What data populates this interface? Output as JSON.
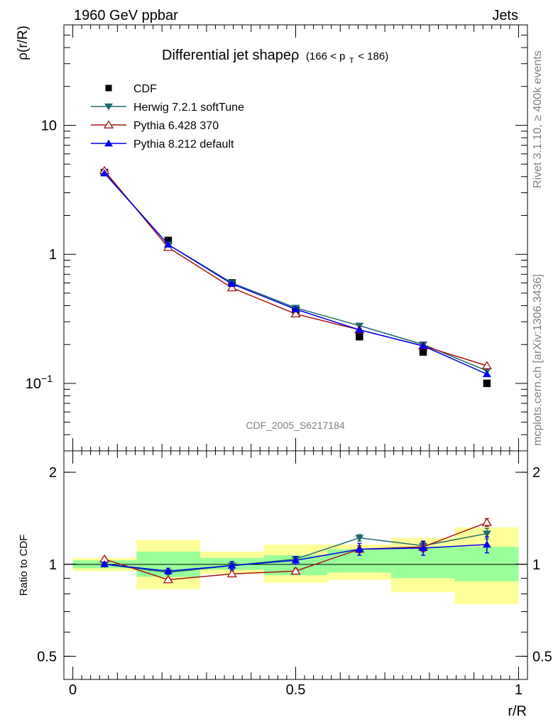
{
  "header": {
    "left": "1960 GeV ppbar",
    "right": "Jets"
  },
  "side_labels": {
    "top": "Rivet 3.1.10, ≥ 400k events",
    "bottom": "mcplots.cern.ch [arXiv:1306.3436]"
  },
  "watermark": "CDF_2005_S6217184",
  "colors": {
    "cdf": "#000000",
    "herwig": "#1f6b6b",
    "pythia6": "#a31515",
    "pythia8": "#0000ee",
    "band_inner": "#99ff99",
    "band_outer": "#ffff99"
  },
  "chart_data": [
    {
      "type": "line",
      "panel": "main",
      "title": "Differential jet shapeρ",
      "title_range": {
        "prefix": "(166 < p",
        "sub": "T",
        "suffix": " < 186)"
      },
      "xlabel": "r/R",
      "ylabel": "ρ(r/R)",
      "yscale": "log",
      "xlim": [
        -0.02,
        1.02
      ],
      "ylim": [
        0.03,
        60
      ],
      "yticks": [
        {
          "value": 10,
          "label": "10"
        },
        {
          "value": 1,
          "label": "1"
        },
        {
          "value": 0.1,
          "label": "10",
          "sup": "−1"
        }
      ],
      "x": [
        0.071,
        0.214,
        0.357,
        0.5,
        0.643,
        0.786,
        0.929
      ],
      "series": [
        {
          "name": "CDF",
          "marker": "square",
          "values": [
            4.3,
            1.28,
            0.6,
            0.37,
            0.23,
            0.175,
            0.1
          ]
        },
        {
          "name": "Herwig 7.2.1 softTune",
          "marker": "triangle-down",
          "values": [
            4.3,
            1.19,
            0.6,
            0.385,
            0.28,
            0.2,
            0.125
          ]
        },
        {
          "name": "Pythia 6.428 370",
          "marker": "triangle-up-open",
          "values": [
            4.45,
            1.13,
            0.55,
            0.345,
            0.26,
            0.195,
            0.137
          ]
        },
        {
          "name": "Pythia 8.212 default",
          "marker": "triangle-up",
          "values": [
            4.25,
            1.19,
            0.59,
            0.375,
            0.26,
            0.195,
            0.118
          ]
        }
      ]
    },
    {
      "type": "line",
      "panel": "ratio",
      "xlabel": "r/R",
      "ylabel": "Ratio to CDF",
      "yscale": "log",
      "xlim": [
        -0.02,
        1.02
      ],
      "ylim": [
        0.42,
        2.35
      ],
      "yticks": [
        {
          "value": 2,
          "label": "2"
        },
        {
          "value": 1,
          "label": "1"
        },
        {
          "value": 0.5,
          "label": "0.5"
        }
      ],
      "xticks": [
        {
          "value": 0,
          "label": "0"
        },
        {
          "value": 0.5,
          "label": "0.5"
        },
        {
          "value": 1,
          "label": "1"
        }
      ],
      "bins": [
        {
          "lo": 0.0,
          "hi": 0.143,
          "inner": [
            0.97,
            1.03
          ],
          "outer": [
            0.95,
            1.05
          ]
        },
        {
          "lo": 0.143,
          "hi": 0.286,
          "inner": [
            0.91,
            1.1
          ],
          "outer": [
            0.83,
            1.2
          ]
        },
        {
          "lo": 0.286,
          "hi": 0.429,
          "inner": [
            0.96,
            1.05
          ],
          "outer": [
            0.93,
            1.1
          ]
        },
        {
          "lo": 0.429,
          "hi": 0.571,
          "inner": [
            0.92,
            1.07
          ],
          "outer": [
            0.87,
            1.16
          ]
        },
        {
          "lo": 0.571,
          "hi": 0.714,
          "inner": [
            0.94,
            1.12
          ],
          "outer": [
            0.89,
            1.16
          ]
        },
        {
          "lo": 0.714,
          "hi": 0.857,
          "inner": [
            0.9,
            1.14
          ],
          "outer": [
            0.81,
            1.22
          ]
        },
        {
          "lo": 0.857,
          "hi": 1.0,
          "inner": [
            0.88,
            1.14
          ],
          "outer": [
            0.74,
            1.32
          ]
        }
      ],
      "x": [
        0.071,
        0.214,
        0.357,
        0.5,
        0.643,
        0.786,
        0.929
      ],
      "series": [
        {
          "name": "Herwig 7.2.1 softTune",
          "marker": "triangle-down",
          "values": [
            1.0,
            0.94,
            0.99,
            1.04,
            1.22,
            1.15,
            1.26
          ],
          "err": [
            0.015,
            0.015,
            0.02,
            0.02,
            0.03,
            0.04,
            0.05
          ]
        },
        {
          "name": "Pythia 6.428 370",
          "marker": "triangle-up-open",
          "values": [
            1.04,
            0.89,
            0.93,
            0.95,
            1.12,
            1.14,
            1.37
          ],
          "err": [
            0.015,
            0.015,
            0.02,
            0.02,
            0.03,
            0.04,
            0.04
          ]
        },
        {
          "name": "Pythia 8.212 default",
          "marker": "triangle-up",
          "values": [
            1.0,
            0.95,
            0.99,
            1.03,
            1.12,
            1.13,
            1.16
          ],
          "err": [
            0.015,
            0.02,
            0.03,
            0.03,
            0.05,
            0.06,
            0.07
          ]
        }
      ]
    }
  ]
}
